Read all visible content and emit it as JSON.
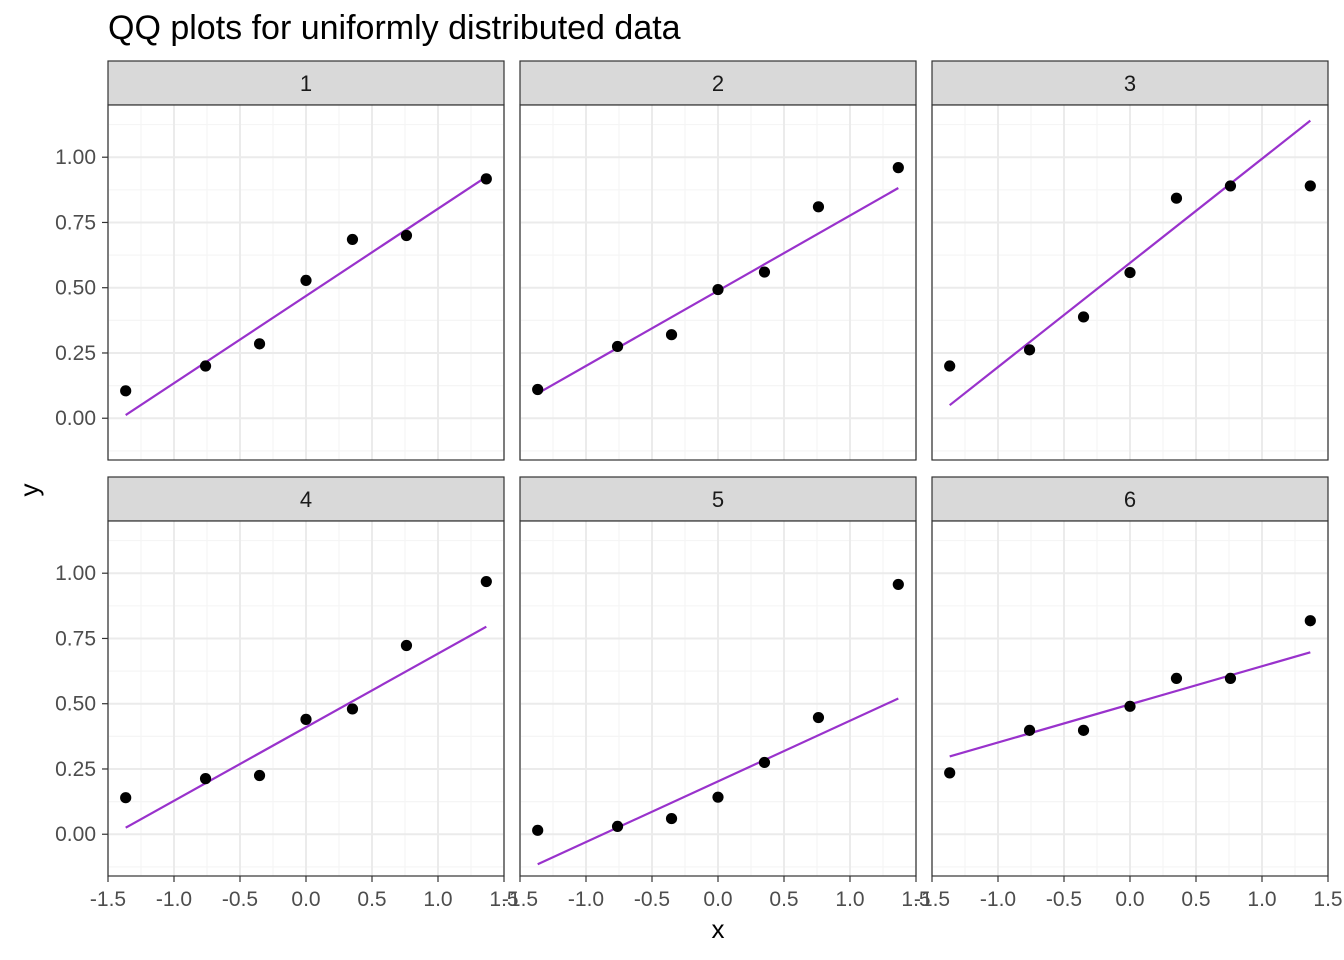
{
  "chart_data": {
    "type": "scatter",
    "title": "QQ plots for uniformly distributed data",
    "xlabel": "x",
    "ylabel": "y",
    "xlim": [
      -1.5,
      1.5
    ],
    "ylim": [
      -0.16,
      1.2
    ],
    "x_ticks": [
      "-1.5",
      "-1.0",
      "-0.5",
      "0.0",
      "0.5",
      "1.0",
      "1.5"
    ],
    "x_tick_values": [
      -1.5,
      -1.0,
      -0.5,
      0.0,
      0.5,
      1.0,
      1.5
    ],
    "y_ticks": [
      "0.00",
      "0.25",
      "0.50",
      "0.75",
      "1.00"
    ],
    "y_tick_values": [
      0.0,
      0.25,
      0.5,
      0.75,
      1.0
    ],
    "grid": true,
    "colors": {
      "points": "#000000",
      "line": "#9932CC",
      "strip": "#D9D9D9",
      "border": "#333333",
      "grid_major": "#EBEBEB",
      "grid_minor": "#F5F5F5"
    },
    "panels": [
      {
        "label": "1",
        "x": [
          -1.366,
          -0.761,
          -0.352,
          0.0,
          0.352,
          0.761,
          1.366
        ],
        "y": [
          0.105,
          0.2,
          0.285,
          0.528,
          0.685,
          0.7,
          0.917
        ],
        "line": {
          "x": [
            -1.366,
            1.366
          ],
          "y": [
            0.012,
            0.925
          ]
        }
      },
      {
        "label": "2",
        "x": [
          -1.366,
          -0.761,
          -0.352,
          0.0,
          0.352,
          0.761,
          1.366
        ],
        "y": [
          0.11,
          0.275,
          0.32,
          0.493,
          0.56,
          0.81,
          0.96
        ],
        "line": {
          "x": [
            -1.366,
            1.366
          ],
          "y": [
            0.095,
            0.882
          ]
        }
      },
      {
        "label": "3",
        "x": [
          -1.366,
          -0.761,
          -0.352,
          0.0,
          0.352,
          0.761,
          1.366
        ],
        "y": [
          0.2,
          0.262,
          0.388,
          0.558,
          0.843,
          0.89,
          0.89
        ],
        "line": {
          "x": [
            -1.366,
            1.366
          ],
          "y": [
            0.05,
            1.14
          ]
        }
      },
      {
        "label": "4",
        "x": [
          -1.366,
          -0.761,
          -0.352,
          0.0,
          0.352,
          0.761,
          1.366
        ],
        "y": [
          0.14,
          0.213,
          0.225,
          0.44,
          0.48,
          0.723,
          0.968
        ],
        "line": {
          "x": [
            -1.366,
            1.366
          ],
          "y": [
            0.025,
            0.795
          ]
        }
      },
      {
        "label": "5",
        "x": [
          -1.366,
          -0.761,
          -0.352,
          0.0,
          0.352,
          0.761,
          1.366
        ],
        "y": [
          0.015,
          0.03,
          0.06,
          0.142,
          0.275,
          0.447,
          0.957
        ],
        "line": {
          "x": [
            -1.366,
            1.366
          ],
          "y": [
            -0.115,
            0.52
          ]
        }
      },
      {
        "label": "6",
        "x": [
          -1.366,
          -0.761,
          -0.352,
          0.0,
          0.352,
          0.761,
          1.366
        ],
        "y": [
          0.235,
          0.398,
          0.398,
          0.49,
          0.597,
          0.597,
          0.818
        ],
        "line": {
          "x": [
            -1.366,
            1.366
          ],
          "y": [
            0.298,
            0.697
          ]
        }
      }
    ]
  }
}
